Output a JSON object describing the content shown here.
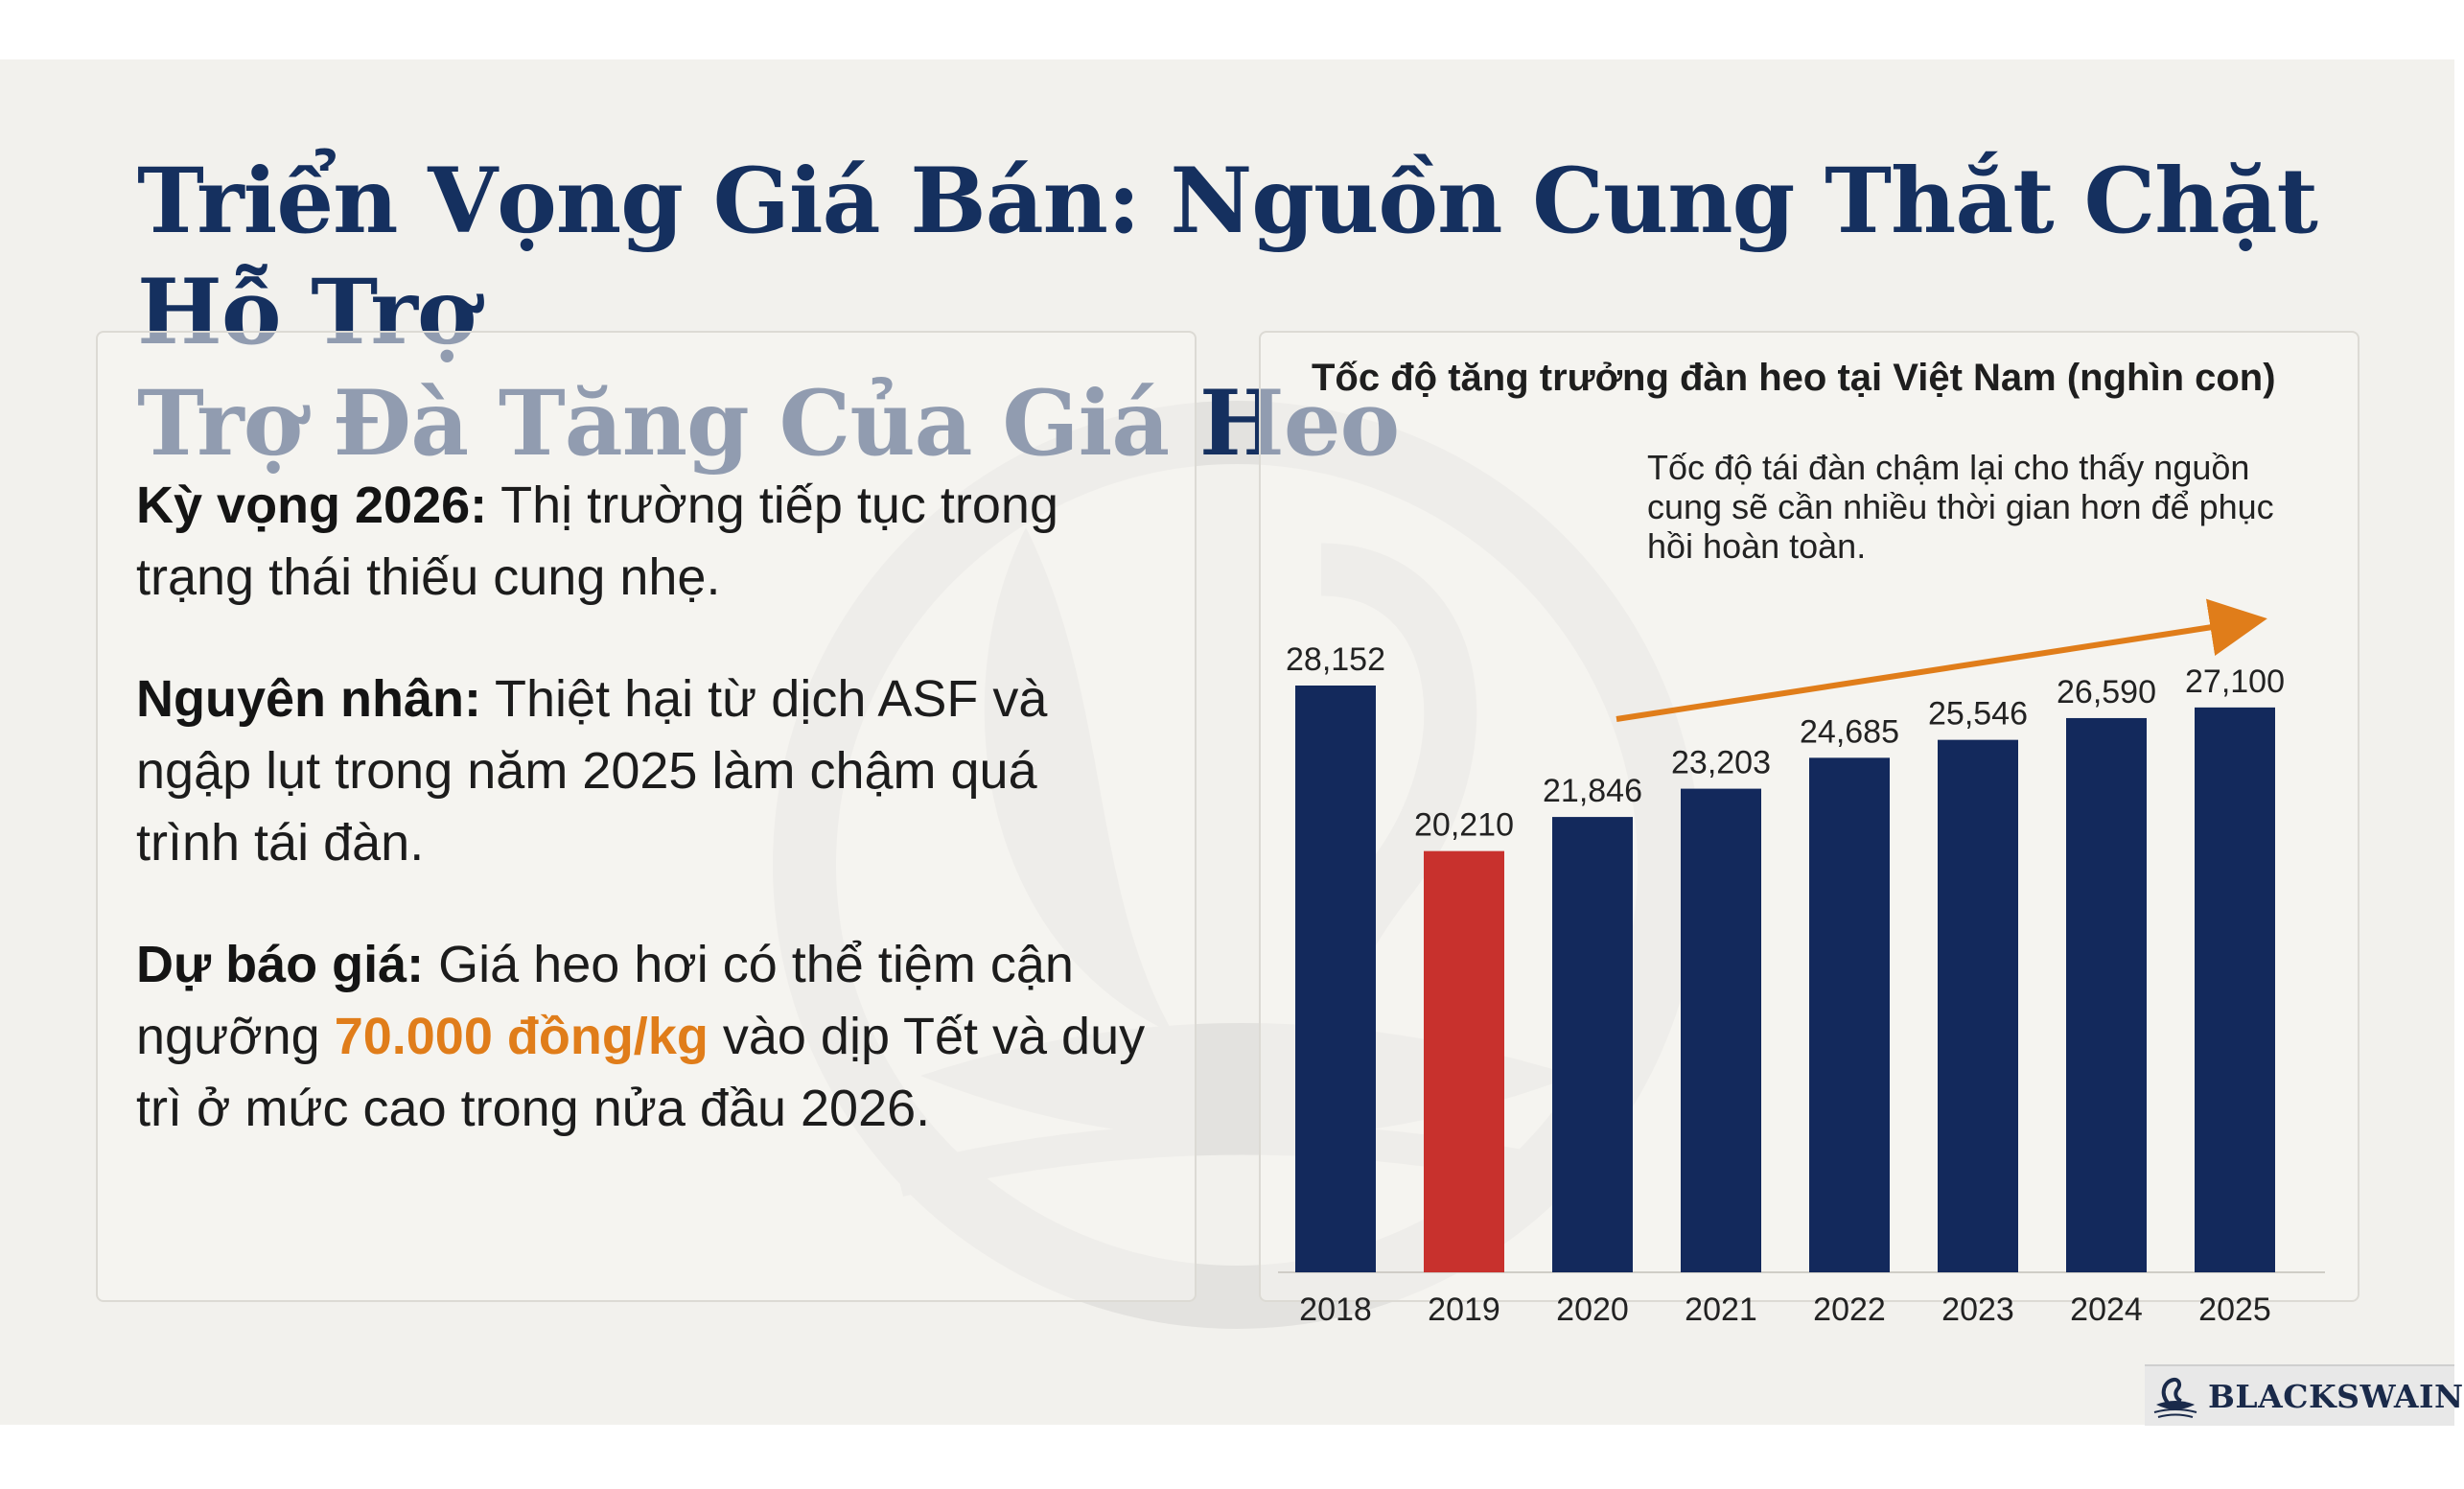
{
  "page": {
    "title_line1": "Triển Vọng Giá Bán: Nguồn Cung Thắt Chặt Hỗ Trợ",
    "title_line2": "Trợ Đà Tăng Của Giá Heo"
  },
  "bullets": [
    {
      "label": "Kỳ vọng 2026:",
      "text": " Thị trường tiếp tục trong trạng thái thiếu cung nhẹ."
    },
    {
      "label": "Nguyên nhân:",
      "text": " Thiệt hại từ dịch ASF và ngập lụt trong năm 2025 làm chậm quá trình tái đàn."
    },
    {
      "label": "Dự báo giá:",
      "text_before": " Giá heo hơi có thể tiệm cận ngưỡng ",
      "highlight": "70.000 đồng/kg",
      "text_after": " vào dịp Tết và duy trì ở mức cao trong nửa đầu 2026."
    }
  ],
  "chart_data": {
    "type": "bar",
    "title": "Tốc độ tăng trưởng đàn heo tại Việt Nam (nghìn con)",
    "categories": [
      "2018",
      "2019",
      "2020",
      "2021",
      "2022",
      "2023",
      "2024",
      "2025"
    ],
    "values": [
      28152,
      20210,
      21846,
      23203,
      24685,
      25546,
      26590,
      27100
    ],
    "value_labels": [
      "28,152",
      "20,210",
      "21,846",
      "23,203",
      "24,685",
      "25,546",
      "26,590",
      "27,100"
    ],
    "highlight_category": "2019",
    "colors": {
      "bar": "#13295c",
      "highlight": "#c8312d",
      "trend_arrow": "#e07d1a"
    },
    "annotation": "Tốc độ tái đàn chậm lại cho thấy nguồn cung sẽ cần nhiều thời gian hơn để phục hồi hoàn toàn.",
    "ylim": [
      0,
      28152
    ],
    "grid": false,
    "legend": "none"
  },
  "brand": {
    "logo_text": "BLACKSWAIN",
    "logo_icon": "swan-icon"
  }
}
